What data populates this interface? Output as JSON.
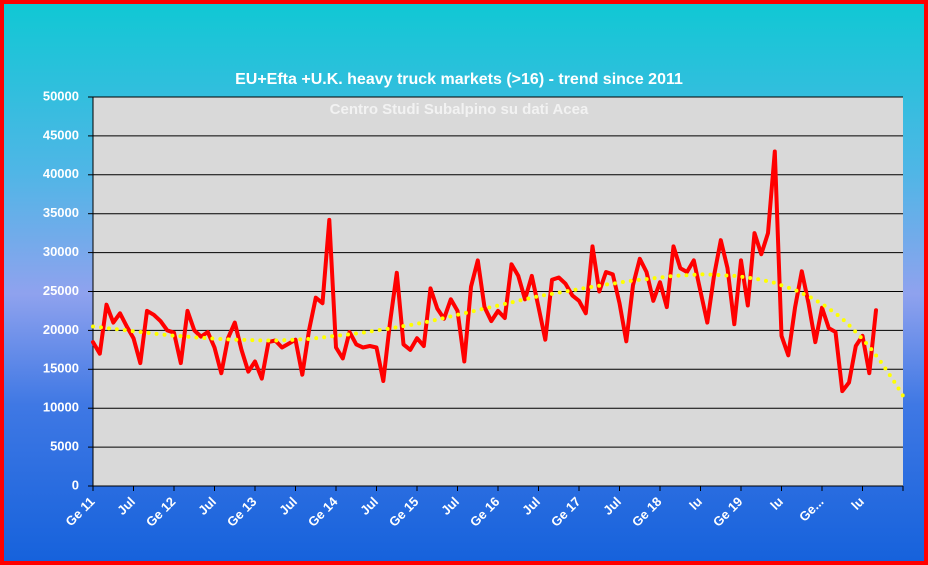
{
  "chart_data": {
    "type": "line",
    "title": "EU+Efta +U.K. heavy truck markets (>16) - trend since 2011",
    "subtitle": "Centro Studi Subalpino su dati Acea",
    "categories": [
      "Ge 11",
      null,
      null,
      null,
      null,
      null,
      "Jul",
      null,
      null,
      null,
      null,
      null,
      "Ge 12",
      null,
      null,
      null,
      null,
      null,
      "Jul",
      null,
      null,
      null,
      null,
      null,
      "Ge 13",
      null,
      null,
      null,
      null,
      null,
      "Jul",
      null,
      null,
      null,
      null,
      null,
      "Ge 14",
      null,
      null,
      null,
      null,
      null,
      "Jul",
      null,
      null,
      null,
      null,
      null,
      "Ge 15",
      null,
      null,
      null,
      null,
      null,
      "Jul",
      null,
      null,
      null,
      null,
      null,
      "Ge 16",
      null,
      null,
      null,
      null,
      null,
      "Jul",
      null,
      null,
      null,
      null,
      null,
      "Ge 17",
      null,
      null,
      null,
      null,
      null,
      "Jul",
      null,
      null,
      null,
      null,
      null,
      "Ge 18",
      null,
      null,
      null,
      null,
      null,
      "lu",
      null,
      null,
      null,
      null,
      null,
      "Ge 19",
      null,
      null,
      null,
      null,
      null,
      "lu",
      null,
      null,
      null,
      null,
      null,
      "Ge...",
      null,
      null,
      null,
      null,
      null,
      "lu",
      null,
      null,
      null,
      null,
      null,
      null
    ],
    "series": [
      {
        "color": "#ff0000",
        "style": "solid",
        "values": [
          18500,
          17000,
          23300,
          21000,
          22200,
          20500,
          19000,
          15800,
          22500,
          22000,
          21200,
          20000,
          19700,
          15800,
          22500,
          20000,
          19200,
          19800,
          17800,
          14500,
          19000,
          21000,
          17500,
          14700,
          16000,
          13800,
          18500,
          18700,
          17800,
          18300,
          18800,
          14300,
          20000,
          24200,
          23500,
          34200,
          17800,
          16400,
          19800,
          18200,
          17800,
          18000,
          17800,
          13500,
          21000,
          27400,
          18200,
          17500,
          19000,
          18000,
          25400,
          22800,
          21500,
          24000,
          22500,
          16000,
          25600,
          29000,
          23000,
          21200,
          22500,
          21600,
          28500,
          27000,
          24000,
          27000,
          23000,
          18800,
          26500,
          26800,
          26000,
          24500,
          23800,
          22200,
          30800,
          25000,
          27500,
          27200,
          23500,
          18600,
          25800,
          29200,
          27500,
          23800,
          26200,
          23000,
          30800,
          28000,
          27500,
          29000,
          25000,
          21000,
          27000,
          31600,
          28000,
          20800,
          29000,
          23200,
          32500,
          29800,
          32500,
          43000,
          19300,
          16800,
          22900,
          27600,
          23500,
          18500,
          22900,
          20300,
          19800,
          12200,
          13300,
          18000,
          19300,
          14500,
          22600,
          null,
          null,
          null,
          null
        ]
      },
      {
        "color": "#ffff00",
        "style": "dotted",
        "values": [
          20500,
          20400,
          20300,
          20200,
          20100,
          20000,
          19900,
          19800,
          19700,
          19600,
          19500,
          19400,
          19300,
          19250,
          19200,
          19100,
          19050,
          19000,
          18950,
          18900,
          18850,
          18800,
          18800,
          18750,
          18750,
          18700,
          18700,
          18700,
          18750,
          18750,
          18800,
          18850,
          18900,
          19000,
          19100,
          19200,
          19300,
          19400,
          19500,
          19600,
          19700,
          19850,
          20000,
          20100,
          20250,
          20400,
          20550,
          20700,
          20850,
          21000,
          21200,
          21400,
          21600,
          21800,
          22000,
          22200,
          22400,
          22600,
          22800,
          23000,
          23200,
          23400,
          23600,
          23800,
          24000,
          24200,
          24400,
          24550,
          24700,
          24850,
          25000,
          25150,
          25300,
          25450,
          25600,
          25750,
          25900,
          26000,
          26150,
          26300,
          26400,
          26500,
          26600,
          26700,
          26800,
          26900,
          27000,
          27050,
          27100,
          27150,
          27200,
          27200,
          27150,
          27100,
          27050,
          27000,
          26900,
          26800,
          26650,
          26500,
          26300,
          26100,
          25800,
          25500,
          25200,
          24800,
          24400,
          23900,
          23400,
          22800,
          22200,
          21500,
          20700,
          19800,
          18900,
          17900,
          16800,
          15600,
          14300,
          13000,
          11600
        ]
      }
    ],
    "ylim": [
      0,
      50000
    ],
    "yticks": [
      0,
      5000,
      10000,
      15000,
      20000,
      25000,
      30000,
      35000,
      40000,
      45000,
      50000
    ],
    "grid": true
  }
}
